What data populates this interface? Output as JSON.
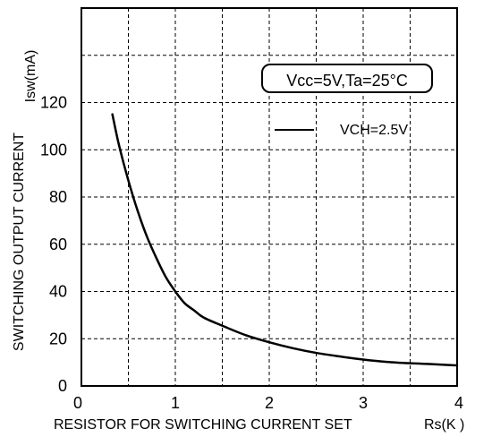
{
  "chart_data": {
    "type": "line",
    "title": "",
    "xlabel": "RESISTOR FOR SWITCHING CURRENT SET",
    "xunit": "Rs(K  )",
    "ylabel": "SWITCHING OUTPUT CURRENT",
    "yunit": "Isw(mA)",
    "xlim": [
      0,
      4
    ],
    "ylim": [
      0,
      160
    ],
    "xticks": [
      "0",
      "1",
      "2",
      "3",
      "4"
    ],
    "yticks": [
      "0",
      "20",
      "40",
      "60",
      "80",
      "100",
      "120"
    ],
    "grid": true,
    "annotation": "Vcc=5V,Ta=25°C",
    "legend_position": "top-right",
    "series": [
      {
        "name": "VCH=2.5V",
        "color": "#000000",
        "x": [
          0.33,
          0.4,
          0.5,
          0.6,
          0.7,
          0.8,
          0.9,
          1.0,
          1.1,
          1.2,
          1.3,
          1.5,
          1.75,
          2.0,
          2.25,
          2.5,
          2.75,
          3.0,
          3.25,
          3.5,
          3.75,
          4.0
        ],
        "y": [
          115,
          102,
          87,
          74,
          63,
          54,
          46,
          40,
          35,
          32,
          29,
          25.5,
          21.5,
          18.5,
          16,
          14,
          12.5,
          11.2,
          10.2,
          9.6,
          9.2,
          8.7
        ]
      }
    ]
  }
}
